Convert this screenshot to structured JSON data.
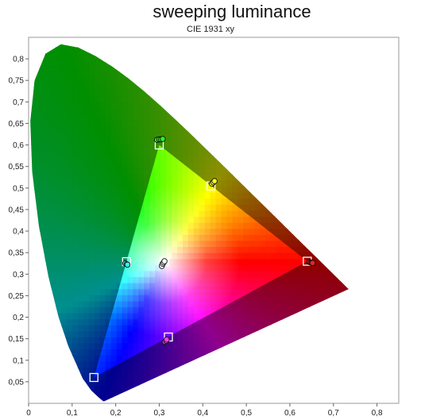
{
  "chart_data": {
    "type": "scatter",
    "title": "sweeping luminance",
    "subtitle": "CIE 1931 xy",
    "xlabel": "",
    "ylabel": "",
    "xlim": [
      0,
      0.85
    ],
    "ylim": [
      0,
      0.85
    ],
    "x_ticks": [
      "0",
      "0,1",
      "0,2",
      "0,3",
      "0,4",
      "0,5",
      "0,6",
      "0,7",
      "0,8"
    ],
    "y_ticks": [
      "0,05",
      "0,1",
      "0,15",
      "0,2",
      "0,25",
      "0,3",
      "0,35",
      "0,4",
      "0,45",
      "0,5",
      "0,55",
      "0,6",
      "0,65",
      "0,7",
      "0,75",
      "0,8"
    ],
    "grid": false,
    "gamut_triangle": [
      [
        0.74,
        0.265
      ],
      [
        0.17,
        0.005
      ]
    ],
    "targets": [
      {
        "name": "red",
        "x": 0.64,
        "y": 0.33
      },
      {
        "name": "green",
        "x": 0.3,
        "y": 0.6
      },
      {
        "name": "blue",
        "x": 0.15,
        "y": 0.06
      },
      {
        "name": "cyan",
        "x": 0.225,
        "y": 0.329
      },
      {
        "name": "magenta",
        "x": 0.321,
        "y": 0.154
      },
      {
        "name": "yellow",
        "x": 0.419,
        "y": 0.505
      },
      {
        "name": "white",
        "x": 0.3127,
        "y": 0.329
      }
    ],
    "measurements": [
      {
        "name": "red",
        "color": "#ff2020",
        "points": [
          [
            0.645,
            0.328
          ],
          [
            0.648,
            0.327
          ],
          [
            0.65,
            0.326
          ],
          [
            0.652,
            0.326
          ]
        ]
      },
      {
        "name": "green",
        "color": "#20ff20",
        "points": [
          [
            0.295,
            0.612
          ],
          [
            0.3,
            0.613
          ],
          [
            0.304,
            0.613
          ],
          [
            0.308,
            0.614
          ]
        ]
      },
      {
        "name": "yellow",
        "color": "#ffff30",
        "points": [
          [
            0.421,
            0.51
          ],
          [
            0.424,
            0.513
          ],
          [
            0.427,
            0.516
          ]
        ]
      },
      {
        "name": "cyan",
        "color": "#30ffff",
        "points": [
          [
            0.222,
            0.325
          ],
          [
            0.225,
            0.323
          ],
          [
            0.227,
            0.322
          ]
        ]
      },
      {
        "name": "magenta",
        "color": "#ff40ff",
        "points": [
          [
            0.313,
            0.143
          ],
          [
            0.316,
            0.145
          ],
          [
            0.317,
            0.148
          ]
        ]
      },
      {
        "name": "white",
        "color": "#ffffff",
        "points": [
          [
            0.306,
            0.319
          ],
          [
            0.308,
            0.324
          ],
          [
            0.31,
            0.327
          ],
          [
            0.312,
            0.33
          ]
        ]
      }
    ]
  }
}
